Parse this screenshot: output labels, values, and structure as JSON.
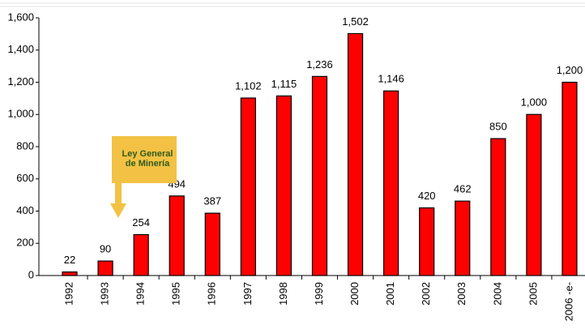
{
  "chart_data": {
    "type": "bar",
    "categories": [
      "1992",
      "1993",
      "1994",
      "1995",
      "1996",
      "1997",
      "1998",
      "1999",
      "2000",
      "2001",
      "2002",
      "2003",
      "2004",
      "2005",
      "2006 -e-"
    ],
    "values": [
      22,
      90,
      254,
      494,
      387,
      1102,
      1115,
      1236,
      1502,
      1146,
      420,
      462,
      850,
      1000,
      1200
    ],
    "value_labels": [
      "22",
      "90",
      "254",
      "494",
      "387",
      "1,102",
      "1,115",
      "1,236",
      "1,502",
      "1,146",
      "420",
      "462",
      "850",
      "1,000",
      "1,200"
    ],
    "color": "#ff0000",
    "ylim": [
      0,
      1600
    ],
    "yticks": [
      0,
      200,
      400,
      600,
      800,
      {
        "value": 1000,
        "label": "1,000"
      },
      {
        "value": 1200,
        "label": "1,200"
      },
      {
        "value": 1400,
        "label": "1,400"
      },
      {
        "value": 1600,
        "label": "1,600"
      }
    ],
    "annotation": [
      "Ley General",
      "de Minería"
    ]
  }
}
